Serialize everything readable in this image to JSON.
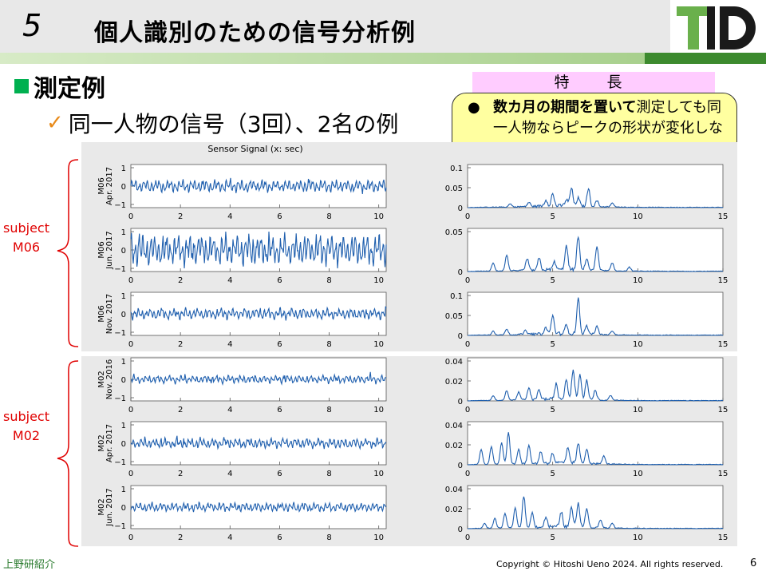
{
  "header": {
    "slide_number": "5",
    "title": "個人識別のための信号分析例",
    "logo_text": "TID"
  },
  "section": {
    "heading": "測定例",
    "subheading": "同一人物の信号（3回）、2名の例"
  },
  "feature": {
    "label": "特　長",
    "bullet_bold": "数カ月の期間を置いて",
    "bullet_rest": "測定しても同一人物ならピークの形状が変化しない"
  },
  "subjects": [
    {
      "label_line1": "subject",
      "label_line2": "M06"
    },
    {
      "label_line1": "subject",
      "label_line2": "M02"
    }
  ],
  "chart_data": [
    {
      "type": "line",
      "title": "Sensor Signal (x: sec)",
      "panels": [
        {
          "ylabel_line1": "M06",
          "ylabel_line2": "Apr. 2017"
        },
        {
          "ylabel_line1": "M06",
          "ylabel_line2": "Jun. 2017"
        },
        {
          "ylabel_line1": "M06",
          "ylabel_line2": "Nov. 2017"
        },
        {
          "ylabel_line1": "M02",
          "ylabel_line2": "Nov. 2016"
        },
        {
          "ylabel_line1": "M02",
          "ylabel_line2": "Apr. 2017"
        },
        {
          "ylabel_line1": "M02",
          "ylabel_line2": "Jun. 2017"
        }
      ],
      "xlim": [
        0,
        10.3
      ],
      "xticks": [
        0,
        2,
        4,
        6,
        8,
        10
      ],
      "ylim": [
        -1,
        1
      ],
      "yticks": [
        "1",
        "0",
        "−1"
      ],
      "amplitudes": [
        0.35,
        0.85,
        0.3,
        0.22,
        0.28,
        0.25
      ],
      "color": "#1f5fae"
    },
    {
      "type": "line",
      "xlim": [
        0,
        15
      ],
      "xticks": [
        0,
        5,
        10,
        15
      ],
      "panels": [
        {
          "ytick_labels": [
            "0.1",
            "0.05",
            "0"
          ],
          "ymax": 0.1,
          "peaks": [
            [
              2.5,
              0.008
            ],
            [
              3.6,
              0.01
            ],
            [
              4.6,
              0.015
            ],
            [
              5.0,
              0.03
            ],
            [
              5.8,
              0.015
            ],
            [
              6.1,
              0.045
            ],
            [
              6.5,
              0.02
            ],
            [
              7.1,
              0.045
            ],
            [
              7.6,
              0.015
            ],
            [
              8.5,
              0.01
            ]
          ]
        },
        {
          "ytick_labels": [
            "0.05",
            "0"
          ],
          "ymax": 0.05,
          "peaks": [
            [
              1.5,
              0.01
            ],
            [
              2.3,
              0.02
            ],
            [
              3.5,
              0.015
            ],
            [
              4.2,
              0.015
            ],
            [
              5.1,
              0.01
            ],
            [
              5.8,
              0.03
            ],
            [
              6.5,
              0.042
            ],
            [
              7.0,
              0.015
            ],
            [
              7.6,
              0.03
            ],
            [
              8.5,
              0.01
            ],
            [
              9.5,
              0.005
            ]
          ]
        },
        {
          "ytick_labels": [
            "0.1",
            "0.05",
            "0"
          ],
          "ymax": 0.1,
          "peaks": [
            [
              1.5,
              0.01
            ],
            [
              2.3,
              0.015
            ],
            [
              3.4,
              0.01
            ],
            [
              4.6,
              0.015
            ],
            [
              5.0,
              0.045
            ],
            [
              5.8,
              0.02
            ],
            [
              6.5,
              0.09
            ],
            [
              7.0,
              0.02
            ],
            [
              7.6,
              0.02
            ],
            [
              8.5,
              0.01
            ]
          ]
        },
        {
          "ytick_labels": [
            "0.04",
            "0.02",
            "0"
          ],
          "ymax": 0.04,
          "peaks": [
            [
              1.5,
              0.005
            ],
            [
              2.3,
              0.01
            ],
            [
              3.0,
              0.008
            ],
            [
              3.6,
              0.012
            ],
            [
              4.2,
              0.01
            ],
            [
              5.2,
              0.015
            ],
            [
              5.8,
              0.02
            ],
            [
              6.2,
              0.03
            ],
            [
              6.6,
              0.025
            ],
            [
              7.0,
              0.02
            ],
            [
              7.5,
              0.01
            ],
            [
              8.4,
              0.005
            ]
          ]
        },
        {
          "ytick_labels": [
            "0.04",
            "0.02",
            "0"
          ],
          "ymax": 0.04,
          "peaks": [
            [
              0.8,
              0.015
            ],
            [
              1.4,
              0.018
            ],
            [
              2.0,
              0.022
            ],
            [
              2.4,
              0.032
            ],
            [
              3.0,
              0.015
            ],
            [
              3.6,
              0.018
            ],
            [
              4.3,
              0.012
            ],
            [
              5.0,
              0.01
            ],
            [
              5.9,
              0.015
            ],
            [
              6.5,
              0.02
            ],
            [
              7.0,
              0.015
            ],
            [
              8.0,
              0.008
            ]
          ]
        },
        {
          "ytick_labels": [
            "0.04",
            "0.02",
            "0"
          ],
          "ymax": 0.04,
          "peaks": [
            [
              1.0,
              0.005
            ],
            [
              1.6,
              0.01
            ],
            [
              2.2,
              0.015
            ],
            [
              2.8,
              0.02
            ],
            [
              3.3,
              0.032
            ],
            [
              3.8,
              0.015
            ],
            [
              4.6,
              0.01
            ],
            [
              5.5,
              0.015
            ],
            [
              6.1,
              0.02
            ],
            [
              6.5,
              0.025
            ],
            [
              7.0,
              0.02
            ],
            [
              7.8,
              0.008
            ],
            [
              8.5,
              0.005
            ]
          ]
        }
      ],
      "color": "#1f5fae"
    }
  ],
  "footer": {
    "left": "上野研紹介",
    "copyright": "Copyright © Hitoshi Ueno  2024. All rights reserved.",
    "page": "6"
  }
}
